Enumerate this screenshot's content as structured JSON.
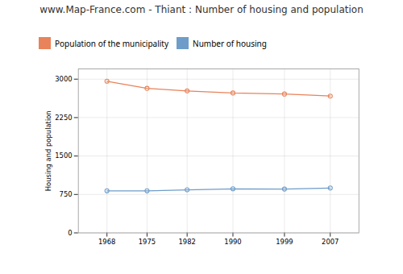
{
  "chart_data": {
    "type": "line",
    "title": "www.Map-France.com - Thiant : Number of housing and population",
    "ylabel": "Housing and population",
    "x": [
      1968,
      1975,
      1982,
      1990,
      1999,
      2007
    ],
    "series": [
      {
        "name": "Population of the municipality",
        "color": "#e8835a",
        "values": [
          2960,
          2820,
          2770,
          2730,
          2710,
          2670
        ]
      },
      {
        "name": "Number of housing",
        "color": "#6e9dc9",
        "values": [
          820,
          820,
          840,
          860,
          855,
          875
        ]
      }
    ],
    "xlim": [
      1963,
      2012
    ],
    "xticks": [
      1968,
      1975,
      1982,
      1990,
      1999,
      2007
    ],
    "ylim": [
      0,
      3200
    ],
    "yticks": [
      0,
      750,
      1500,
      2250,
      3000
    ],
    "grid": true,
    "marker": "circle"
  }
}
